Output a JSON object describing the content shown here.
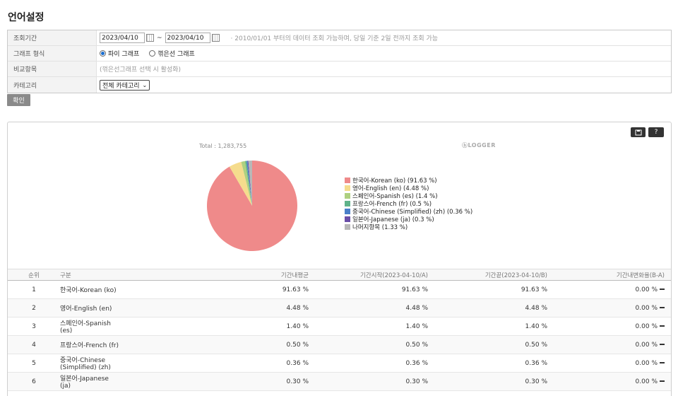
{
  "page": {
    "title": "언어설정"
  },
  "filter": {
    "period": {
      "label": "조회기간",
      "start": "2023/04/10",
      "end": "2023/04/10",
      "separator": "~",
      "hint": "· 2010/01/01 부터의 데이터 조회 가능하며, 당일 기준 2일 전까지 조회 가능"
    },
    "graph_type": {
      "label": "그래프 형식",
      "options": [
        {
          "label": "파이 그래프",
          "selected": true
        },
        {
          "label": "꺾은선 그래프",
          "selected": false
        }
      ]
    },
    "compare": {
      "label": "비교항목",
      "hint": "(꺾은선그래프 선택 시 활성화)"
    },
    "category": {
      "label": "카테고리",
      "value": "전체 카테고리"
    }
  },
  "confirm_label": "확인",
  "chart_toolbar": {
    "save_icon": "save-icon",
    "help_label": "?"
  },
  "logo_text": "ⓑLOGGER",
  "chart_data": {
    "type": "pie",
    "total_label": "Total : 1,283,755",
    "slices": [
      {
        "label": "한국어-Korean (ko)  (91.63 %)",
        "value": 91.63,
        "color": "#ef8a8a"
      },
      {
        "label": "영어-English (en)  (4.48 %)",
        "value": 4.48,
        "color": "#f5dc8d"
      },
      {
        "label": "스페인어-Spanish (es)  (1.4 %)",
        "value": 1.4,
        "color": "#aed080"
      },
      {
        "label": "프랑스어-French (fr)  (0.5 %)",
        "value": 0.5,
        "color": "#5fb38a"
      },
      {
        "label": "중국어-Chinese (Simplified) (zh)  (0.36 %)",
        "value": 0.36,
        "color": "#4a7fc9"
      },
      {
        "label": "일본어-Japanese (ja)  (0.3 %)",
        "value": 0.3,
        "color": "#6a4ea8"
      },
      {
        "label": "나머지항목  (1.33 %)",
        "value": 1.33,
        "color": "#b8b8b8"
      }
    ]
  },
  "table": {
    "headers": [
      "순위",
      "구분",
      "기간내평균",
      "기간시작(2023-04-10/A)",
      "기간끝(2023-04-10/B)",
      "기간내변화율(B-A)"
    ],
    "rows": [
      [
        "1",
        "한국어-Korean (ko)",
        "91.63 %",
        "91.63 %",
        "91.63 %",
        "0.00 %"
      ],
      [
        "2",
        "영어-English (en)",
        "4.48 %",
        "4.48 %",
        "4.48 %",
        "0.00 %"
      ],
      [
        "3",
        "스페인어-Spanish (es)",
        "1.40 %",
        "1.40 %",
        "1.40 %",
        "0.00 %"
      ],
      [
        "4",
        "프랑스어-French (fr)",
        "0.50 %",
        "0.50 %",
        "0.50 %",
        "0.00 %"
      ],
      [
        "5",
        "중국어-Chinese (Simplified) (zh)",
        "0.36 %",
        "0.36 %",
        "0.36 %",
        "0.00 %"
      ],
      [
        "6",
        "일본어-Japanese (ja)",
        "0.30 %",
        "0.30 %",
        "0.30 %",
        "0.00 %"
      ]
    ]
  }
}
